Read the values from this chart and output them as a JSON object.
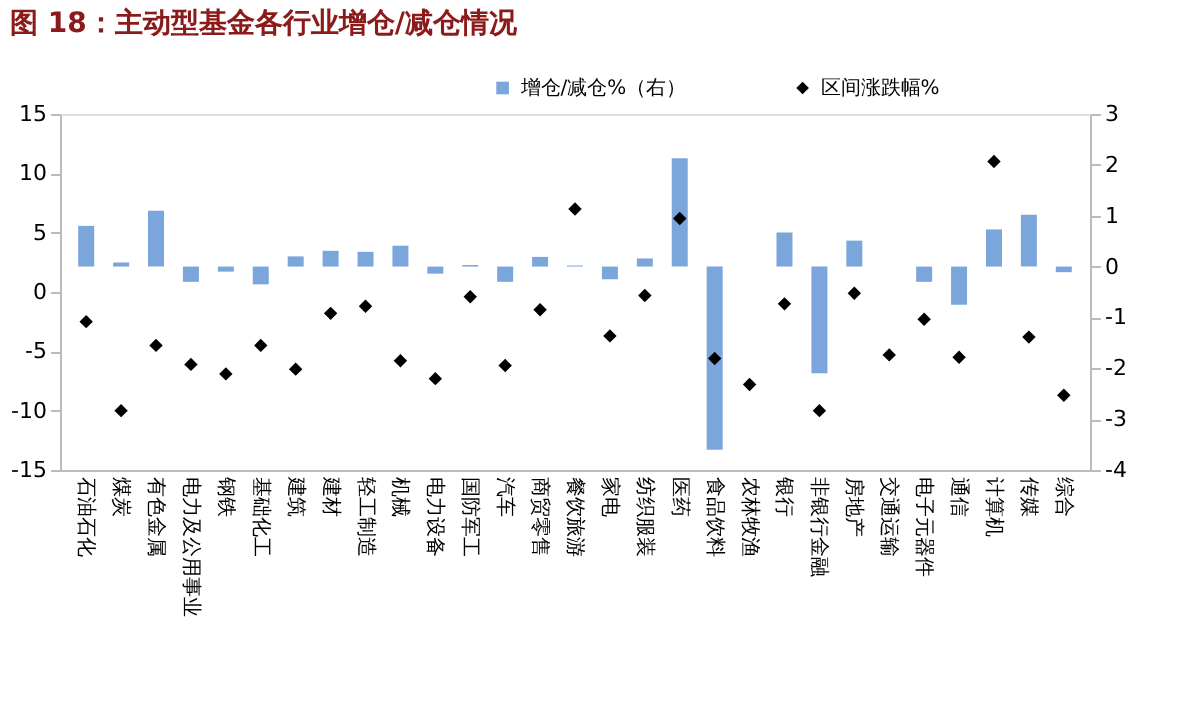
{
  "chart_data": {
    "type": "bar",
    "title": "图 18：主动型基金各行业增仓/减仓情况",
    "categories": [
      "石油石化",
      "煤炭",
      "有色金属",
      "电力及公用事业",
      "钢铁",
      "基础化工",
      "建筑",
      "建材",
      "轻工制造",
      "机械",
      "电力设备",
      "国防军工",
      "汽车",
      "商贸零售",
      "餐饮旅游",
      "家电",
      "纺织服装",
      "医药",
      "食品饮料",
      "农林牧渔",
      "银行",
      "非银行金融",
      "房地产",
      "交通运输",
      "电子元器件",
      "通信",
      "计算机",
      "传媒",
      "综合"
    ],
    "series": [
      {
        "name": "增仓/减仓%（右）",
        "axis": "y2",
        "color": "#7aa6dc",
        "values": [
          0.8,
          0.08,
          1.1,
          -0.3,
          -0.1,
          -0.35,
          0.2,
          0.31,
          0.29,
          0.41,
          -0.14,
          0.03,
          -0.3,
          0.19,
          0.02,
          -0.25,
          0.16,
          2.13,
          -3.6,
          0.0,
          0.67,
          -2.1,
          0.51,
          0.0,
          -0.3,
          -0.75,
          0.73,
          1.02,
          -0.11
        ]
      },
      {
        "name": "区间涨跌幅%",
        "type": "scatter",
        "marker": "diamond",
        "color": "#000000",
        "values": [
          -2.5,
          -10.0,
          -4.5,
          -6.1,
          -6.9,
          -4.5,
          -6.5,
          -1.8,
          -1.2,
          -5.8,
          -7.3,
          -0.4,
          -6.2,
          -1.5,
          7.0,
          -3.7,
          -0.3,
          6.2,
          -5.6,
          -7.8,
          -1.0,
          -10.0,
          -0.1,
          -5.3,
          -2.3,
          -5.5,
          11.0,
          -3.8,
          -8.7
        ]
      }
    ],
    "ylim": [
      -15,
      15
    ],
    "yticks": [
      -15,
      -10,
      -5,
      0,
      5,
      10,
      15
    ],
    "y2lim": [
      -4,
      3
    ],
    "y2ticks": [
      -4,
      -3,
      -2,
      -1,
      0,
      1,
      2,
      3
    ],
    "grid": false,
    "legend": "top"
  }
}
